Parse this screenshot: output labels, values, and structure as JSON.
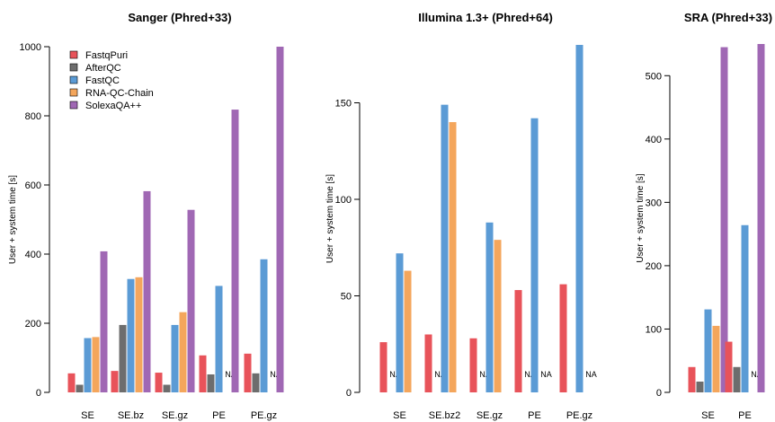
{
  "colors": {
    "FastqPuri": "#e8535a",
    "AfterQC": "#6d6d6d",
    "FastQC": "#5b9bd5",
    "RNA-QC-Chain": "#f4a65c",
    "SolexaQA++": "#a068b4"
  },
  "legend": [
    "FastqPuri",
    "AfterQC",
    "FastQC",
    "RNA-QC-Chain",
    "SolexaQA++"
  ],
  "na_label": "NA",
  "chart_data": [
    {
      "type": "bar",
      "title": "Sanger (Phred+33)",
      "ylabel": "User + system time [s]",
      "ylim": [
        0,
        1000
      ],
      "yticks": [
        0,
        200,
        400,
        600,
        800,
        1000
      ],
      "categories": [
        "SE",
        "SE.bz",
        "SE.gz",
        "PE",
        "PE.gz"
      ],
      "legend_position": "top-left",
      "series": [
        {
          "name": "FastqPuri",
          "values": [
            55,
            62,
            57,
            107,
            112
          ]
        },
        {
          "name": "AfterQC",
          "values": [
            22,
            195,
            22,
            52,
            55
          ]
        },
        {
          "name": "FastQC",
          "values": [
            157,
            328,
            195,
            308,
            385
          ]
        },
        {
          "name": "RNA-QC-Chain",
          "values": [
            160,
            333,
            232,
            null,
            null
          ]
        },
        {
          "name": "SolexaQA++",
          "values": [
            408,
            582,
            528,
            818,
            1010
          ]
        }
      ]
    },
    {
      "type": "bar",
      "title": "Illumina 1.3+ (Phred+64)",
      "ylabel": "User + system time [s]",
      "ylim": [
        0,
        180
      ],
      "yticks": [
        0,
        50,
        100,
        150
      ],
      "categories": [
        "SE",
        "SE.bz2",
        "SE.gz",
        "PE",
        "PE.gz"
      ],
      "series": [
        {
          "name": "FastqPuri",
          "values": [
            26,
            30,
            28,
            53,
            56
          ]
        },
        {
          "name": "AfterQC",
          "values": [
            null,
            null,
            null,
            null,
            null
          ]
        },
        {
          "name": "FastQC",
          "values": [
            72,
            149,
            88,
            142,
            180
          ]
        },
        {
          "name": "RNA-QC-Chain",
          "values": [
            63,
            140,
            79,
            null,
            null
          ]
        },
        {
          "name": "SolexaQA++",
          "values": [
            null,
            null,
            null,
            null,
            null
          ]
        }
      ]
    },
    {
      "type": "bar",
      "title": "SRA (Phred+33)",
      "ylabel": "User + system time [s]",
      "ylim": [
        0,
        550
      ],
      "yticks": [
        0,
        100,
        200,
        300,
        400,
        500
      ],
      "categories": [
        "SE",
        "PE"
      ],
      "series": [
        {
          "name": "FastqPuri",
          "values": [
            40,
            80
          ]
        },
        {
          "name": "AfterQC",
          "values": [
            17,
            40
          ]
        },
        {
          "name": "FastQC",
          "values": [
            131,
            264
          ]
        },
        {
          "name": "RNA-QC-Chain",
          "values": [
            105,
            null
          ]
        },
        {
          "name": "SolexaQA++",
          "values": [
            545,
            550
          ]
        }
      ]
    }
  ]
}
